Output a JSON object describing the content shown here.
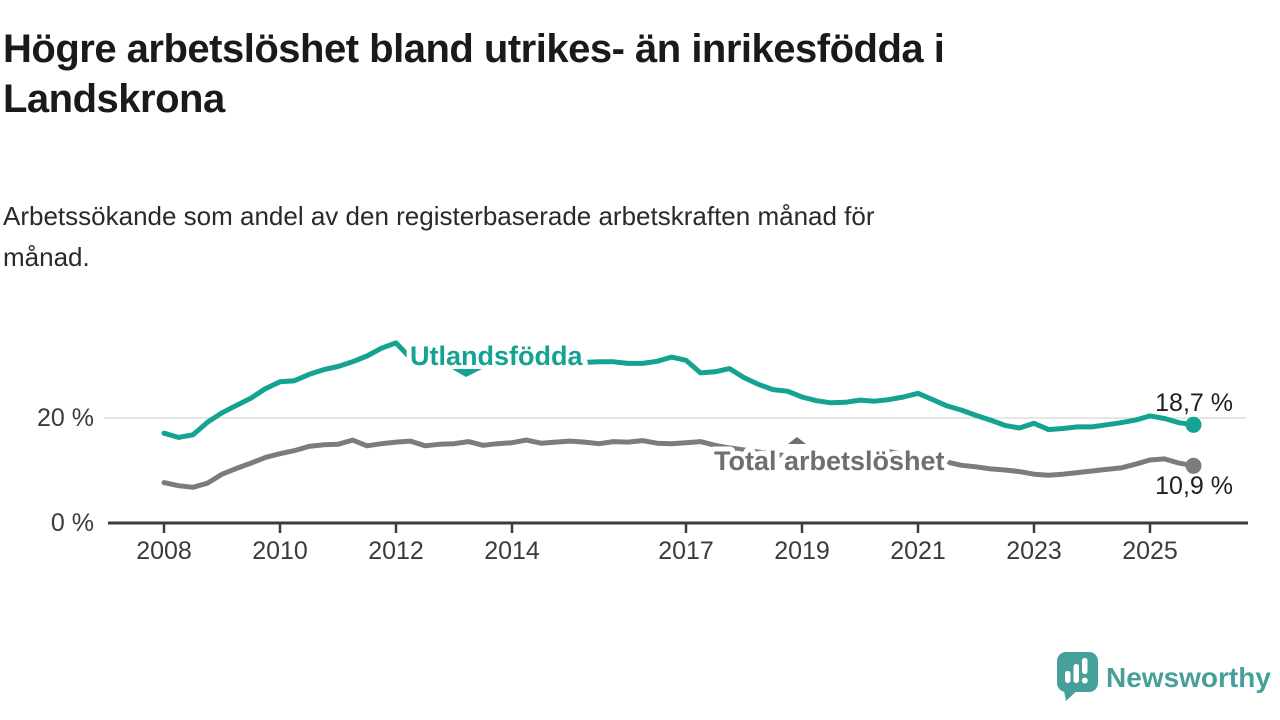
{
  "header": {
    "title_line1": "Högre arbetslöshet bland utrikes- än inrikesfödda i",
    "title_line2": "Landskrona",
    "subtitle_line1": "Arbetssökande som andel av den registerbaserade arbetskraften månad för",
    "subtitle_line2": "månad."
  },
  "branding": {
    "name": "Newsworthy",
    "logo_color": "#46a09a"
  },
  "colors": {
    "accent_teal": "#14a291",
    "series_gray": "#7c7c80",
    "label_gray": "#6f6f73",
    "axis": "#3b3b3b",
    "gridline": "#dedede",
    "text_dark": "#1a1a1a"
  },
  "chart_data": {
    "type": "line",
    "title": "Högre arbetslöshet bland utrikes- än inrikesfödda i Landskrona",
    "subtitle": "Arbetssökande som andel av den registerbaserade arbetskraften månad för månad.",
    "x_unit": "year (quarterly samples of monthly data)",
    "x_start": 2008.0,
    "x_step": 0.25,
    "x_range": [
      2007.0,
      2026.7
    ],
    "y_range": [
      0,
      36
    ],
    "grid": "single horizontal gridline at 20 %",
    "legend_position": "inline labels on lines",
    "x_tick_values": [
      2008,
      2010,
      2012,
      2014,
      2017,
      2019,
      2021,
      2023,
      2025
    ],
    "x_tick_labels": [
      "2008",
      "2010",
      "2012",
      "2014",
      "2017",
      "2019",
      "2021",
      "2023",
      "2025"
    ],
    "y_ticks": [
      {
        "value": 0,
        "label": "0 %"
      },
      {
        "value": 20,
        "label": "20 %"
      }
    ],
    "series": [
      {
        "name": "Utlandsfödda",
        "color": "#14a291",
        "end_label": "18,7 %",
        "end_value": 18.7,
        "values": [
          17.1,
          16.3,
          16.8,
          19.2,
          21.0,
          22.4,
          23.8,
          25.6,
          26.9,
          27.1,
          28.3,
          29.2,
          29.8,
          30.7,
          31.8,
          33.3,
          34.3,
          31.4,
          31.2,
          31.1,
          31.0,
          31.0,
          30.9,
          30.9,
          30.8,
          30.8,
          30.7,
          30.7,
          30.6,
          30.6,
          30.7,
          30.7,
          30.4,
          30.4,
          30.8,
          31.6,
          31.0,
          28.6,
          28.8,
          29.4,
          27.7,
          26.4,
          25.4,
          25.1,
          24.0,
          23.3,
          22.9,
          23.0,
          23.4,
          23.2,
          23.5,
          24.0,
          24.7,
          23.5,
          22.3,
          21.5,
          20.5,
          19.6,
          18.6,
          18.1,
          19.0,
          17.8,
          18.0,
          18.3,
          18.3,
          18.7,
          19.1,
          19.6,
          20.4,
          19.9,
          19.1,
          18.7
        ]
      },
      {
        "name": "Total arbetslöshet",
        "color": "#7c7c80",
        "end_label": "10,9 %",
        "end_value": 10.9,
        "values": [
          7.7,
          7.1,
          6.8,
          7.6,
          9.3,
          10.4,
          11.4,
          12.5,
          13.2,
          13.8,
          14.6,
          14.9,
          15.0,
          15.8,
          14.7,
          15.1,
          15.4,
          15.6,
          14.7,
          15.0,
          15.1,
          15.5,
          14.8,
          15.1,
          15.3,
          15.8,
          15.2,
          15.4,
          15.6,
          15.4,
          15.1,
          15.5,
          15.4,
          15.7,
          15.2,
          15.1,
          15.3,
          15.5,
          14.8,
          14.3,
          13.9,
          13.5,
          13.1,
          12.8,
          12.5,
          12.3,
          12.1,
          12.0,
          12.6,
          13.9,
          13.6,
          13.1,
          12.7,
          12.2,
          11.6,
          11.0,
          10.7,
          10.3,
          10.1,
          9.8,
          9.3,
          9.1,
          9.3,
          9.6,
          9.9,
          10.2,
          10.5,
          11.2,
          12.0,
          12.2,
          11.4,
          10.9
        ]
      }
    ]
  }
}
